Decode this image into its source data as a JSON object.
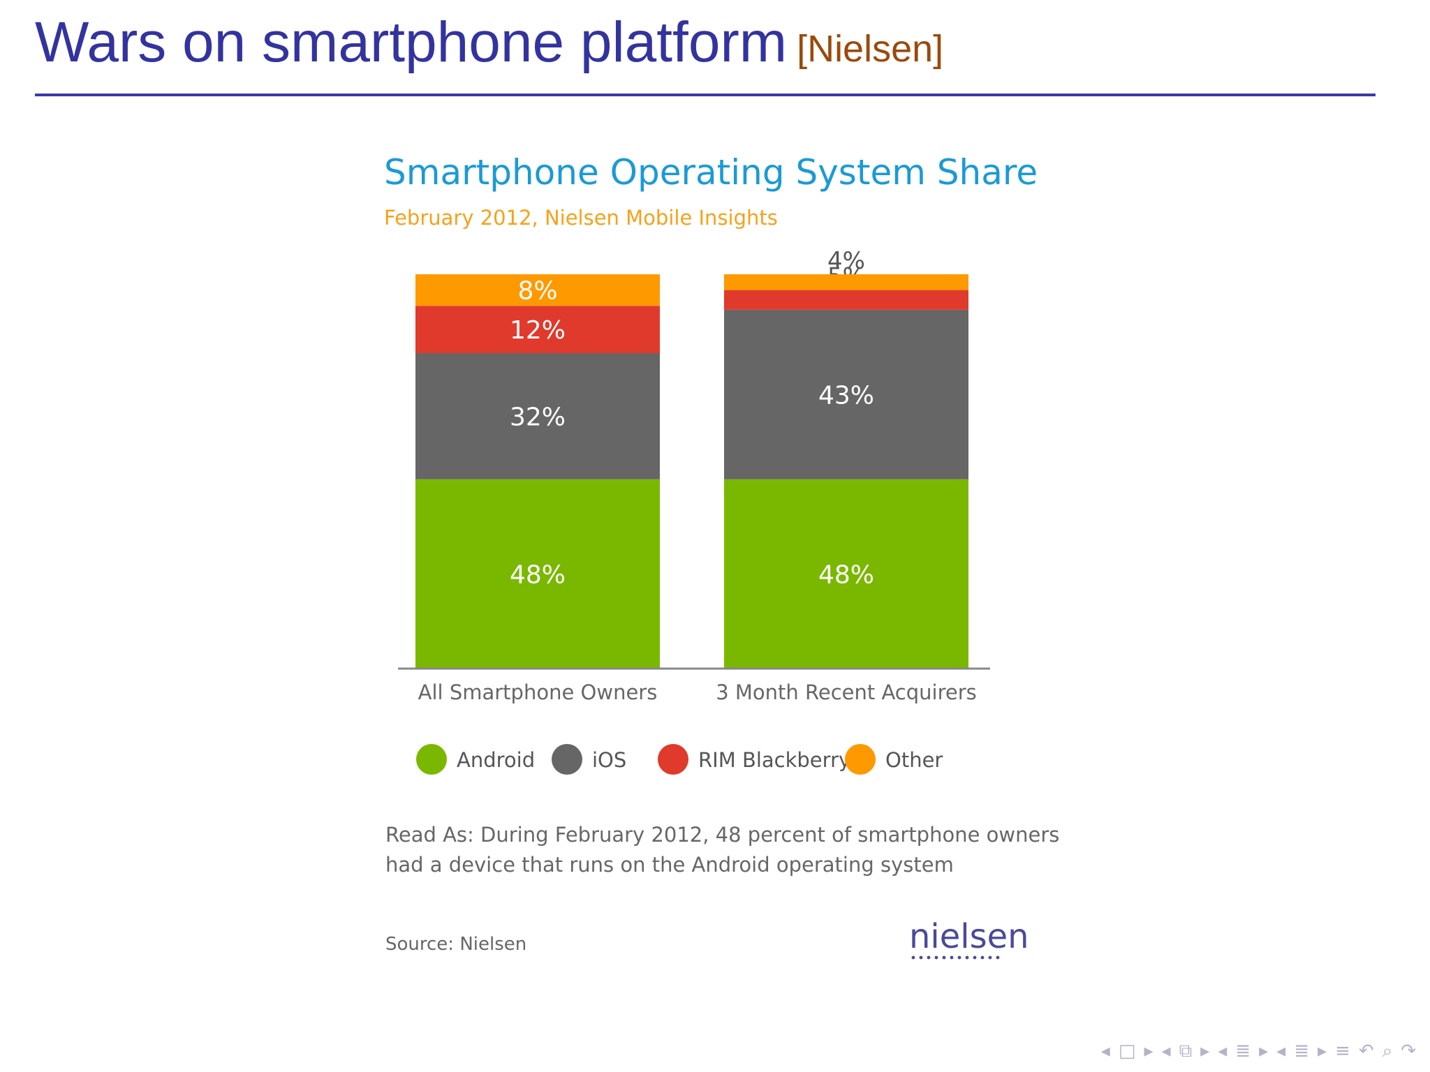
{
  "slide": {
    "title": "Wars on smartphone platform",
    "citation": "[Nielsen]"
  },
  "chart_data": {
    "type": "bar",
    "stacked": true,
    "title": "Smartphone Operating System Share",
    "subtitle": "February 2012, Nielsen Mobile Insights",
    "categories": [
      "All Smartphone Owners",
      "3 Month Recent Acquirers"
    ],
    "series": [
      {
        "name": "Android",
        "values": [
          48,
          48
        ],
        "color": "#7ab800"
      },
      {
        "name": "iOS",
        "values": [
          32,
          43
        ],
        "color": "#666666"
      },
      {
        "name": "RIM Blackberry",
        "values": [
          12,
          5
        ],
        "color": "#e03a2c"
      },
      {
        "name": "Other",
        "values": [
          8,
          4
        ],
        "color": "#ff9900"
      }
    ],
    "data_labels": [
      [
        "48%",
        "32%",
        "12%",
        "8%"
      ],
      [
        "48%",
        "43%",
        "5%",
        "4%"
      ]
    ],
    "ylim": [
      0,
      100
    ],
    "legend_position": "bottom",
    "grid": false,
    "note_lines": [
      "Read As: During February 2012, 48 percent of smartphone owners",
      "had a device that runs on the Android operating system"
    ],
    "source": "Source: Nielsen",
    "logo_text": "nielsen"
  },
  "colors": {
    "chart_title": "#1a9ad6",
    "chart_subtitle": "#f7a11a",
    "axis_text": "#666666",
    "logo": "#4a4a9a"
  },
  "nav_icons": [
    "prev-arrow-icon",
    "frame-icon",
    "next-arrow-icon",
    "prev-arrow-icon",
    "subsection-icon",
    "next-arrow-icon",
    "prev-arrow-icon",
    "section-icon",
    "next-arrow-icon",
    "prev-arrow-icon",
    "list-icon",
    "next-arrow-icon",
    "align-icon",
    "undo-icon",
    "search-icon",
    "redo-icon"
  ]
}
